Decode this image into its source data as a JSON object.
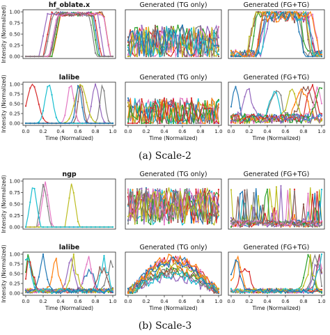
{
  "captions": [
    "(a) Scale-2",
    "(b) Scale-3"
  ],
  "palette": [
    "#1f77b4",
    "#ff7f0e",
    "#2ca02c",
    "#d62728",
    "#9467bd",
    "#8c564b",
    "#e377c2",
    "#7f7f7f",
    "#bcbd22",
    "#17becf"
  ],
  "chart_data": [
    {
      "id": "s2-r1-c1",
      "type": "line",
      "title": "hf_oblate.x",
      "bold": true,
      "ylabel": "Intensity (Normalized)",
      "xlabel": "",
      "xlim": [
        0,
        1
      ],
      "ylim": [
        0,
        1
      ],
      "yticks": [
        "0.00",
        "0.25",
        "0.50",
        "0.75",
        "1.00"
      ],
      "xticks": [],
      "grid": false,
      "series_count": 8,
      "style": "plateau"
    },
    {
      "id": "s2-r1-c2",
      "type": "line",
      "title": "Generated (TG only)",
      "bold": false,
      "ylabel": "",
      "xlabel": "",
      "xlim": [
        0,
        1
      ],
      "ylim": [
        0,
        1
      ],
      "yticks": [],
      "xticks": [],
      "grid": false,
      "series_count": 10,
      "style": "noise"
    },
    {
      "id": "s2-r1-c3",
      "type": "line",
      "title": "Generated (FG+TG)",
      "bold": false,
      "ylabel": "",
      "xlabel": "",
      "xlim": [
        0,
        1
      ],
      "ylim": [
        0,
        1
      ],
      "yticks": [],
      "xticks": [],
      "grid": false,
      "series_count": 10,
      "style": "plateau-noisy"
    },
    {
      "id": "s2-r2-c1",
      "type": "line",
      "title": "lalibe",
      "bold": true,
      "ylabel": "Intensity (Normalized)",
      "xlabel": "Time (Normalized)",
      "xlim": [
        0,
        1
      ],
      "ylim": [
        0,
        1
      ],
      "yticks": [
        "0.00",
        "0.25",
        "0.50",
        "0.75",
        "1.00"
      ],
      "xticks": [
        "0.0",
        "0.2",
        "0.4",
        "0.6",
        "0.8",
        "1.0"
      ],
      "grid": false,
      "series_count": 8,
      "style": "peaks"
    },
    {
      "id": "s2-r2-c2",
      "type": "line",
      "title": "Generated (TG only)",
      "bold": false,
      "ylabel": "",
      "xlabel": "Time (Normalized)",
      "xlim": [
        0,
        1
      ],
      "ylim": [
        0,
        1
      ],
      "yticks": [],
      "xticks": [
        "0.0",
        "0.2",
        "0.4",
        "0.6",
        "0.8",
        "1.0"
      ],
      "grid": false,
      "series_count": 10,
      "style": "noise-low"
    },
    {
      "id": "s2-r2-c3",
      "type": "line",
      "title": "Generated (FG+TG)",
      "bold": false,
      "ylabel": "",
      "xlabel": "Time (Normalized)",
      "xlim": [
        0,
        1
      ],
      "ylim": [
        0,
        1
      ],
      "yticks": [],
      "xticks": [
        "0.0",
        "0.2",
        "0.4",
        "0.6",
        "0.8",
        "1.0"
      ],
      "grid": false,
      "series_count": 10,
      "style": "peaks-noisy"
    },
    {
      "id": "s3-r1-c1",
      "type": "line",
      "title": "ngp",
      "bold": true,
      "ylabel": "Intensity (Normalized)",
      "xlabel": "",
      "xlim": [
        0,
        1
      ],
      "ylim": [
        0,
        1
      ],
      "yticks": [
        "0.00",
        "0.25",
        "0.50",
        "0.75",
        "1.00"
      ],
      "xticks": [],
      "grid": false,
      "series_count": 4,
      "style": "spikes"
    },
    {
      "id": "s3-r1-c2",
      "type": "line",
      "title": "Generated (TG only)",
      "bold": false,
      "ylabel": "",
      "xlabel": "",
      "xlim": [
        0,
        1
      ],
      "ylim": [
        0,
        1
      ],
      "yticks": [],
      "xticks": [],
      "grid": false,
      "series_count": 12,
      "style": "noise-mid"
    },
    {
      "id": "s3-r1-c3",
      "type": "line",
      "title": "Generated (FG+TG)",
      "bold": false,
      "ylabel": "",
      "xlabel": "",
      "xlim": [
        0,
        1
      ],
      "ylim": [
        0,
        1
      ],
      "yticks": [],
      "xticks": [],
      "grid": false,
      "series_count": 10,
      "style": "noise-sparse"
    },
    {
      "id": "s3-r2-c1",
      "type": "line",
      "title": "lalibe",
      "bold": true,
      "ylabel": "Intensity (Normalized)",
      "xlabel": "Time (Normalized)",
      "xlim": [
        0,
        1
      ],
      "ylim": [
        0,
        1
      ],
      "yticks": [
        "0.00",
        "0.25",
        "0.50",
        "0.75",
        "1.00"
      ],
      "xticks": [
        "0.0",
        "0.2",
        "0.4",
        "0.6",
        "0.8",
        "1.0"
      ],
      "grid": false,
      "series_count": 12,
      "style": "dense-peaks"
    },
    {
      "id": "s3-r2-c2",
      "type": "line",
      "title": "Generated (TG only)",
      "bold": false,
      "ylabel": "",
      "xlabel": "Time (Normalized)",
      "xlim": [
        0,
        1
      ],
      "ylim": [
        0,
        1
      ],
      "yticks": [],
      "xticks": [
        "0.0",
        "0.2",
        "0.4",
        "0.6",
        "0.8",
        "1.0"
      ],
      "grid": false,
      "series_count": 12,
      "style": "arch-noise"
    },
    {
      "id": "s3-r2-c3",
      "type": "line",
      "title": "Generated (FG+TG)",
      "bold": false,
      "ylabel": "",
      "xlabel": "Time (Normalized)",
      "xlim": [
        0,
        1
      ],
      "ylim": [
        0,
        1
      ],
      "yticks": [],
      "xticks": [
        "0.0",
        "0.2",
        "0.4",
        "0.6",
        "0.8",
        "1.0"
      ],
      "grid": false,
      "series_count": 10,
      "style": "edge-peaks"
    }
  ]
}
